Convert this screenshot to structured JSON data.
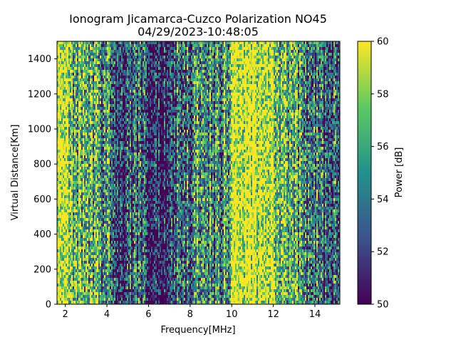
{
  "chart_data": {
    "type": "heatmap",
    "title": "Ionogram Jicamarca-Cuzco Polarization NO45",
    "subtitle": "04/29/2023-10:48:05",
    "xlabel": "Frequency[MHz]",
    "ylabel": "Virtual Distance[Km]",
    "colorbar_label": "Power [dB]",
    "colormap": "viridis",
    "colormap_stops": [
      "#440154",
      "#3b528b",
      "#21918c",
      "#5ec962",
      "#fde725"
    ],
    "xlim": [
      1.6,
      15.2
    ],
    "ylim": [
      0,
      1500
    ],
    "clim": [
      50,
      60
    ],
    "x_ticks": [
      2,
      4,
      6,
      8,
      10,
      12,
      14
    ],
    "y_ticks": [
      0,
      200,
      400,
      600,
      800,
      1000,
      1200,
      1400
    ],
    "colorbar_ticks": [
      50,
      52,
      54,
      56,
      58,
      60
    ],
    "bands": [
      {
        "x": [
          1.6,
          2.2
        ],
        "level": 58.5
      },
      {
        "x": [
          2.2,
          3.0
        ],
        "level": 56.5
      },
      {
        "x": [
          3.0,
          3.6
        ],
        "level": 55.5
      },
      {
        "x": [
          3.6,
          4.4
        ],
        "level": 54.5
      },
      {
        "x": [
          4.4,
          5.2
        ],
        "level": 52.5
      },
      {
        "x": [
          5.2,
          6.0
        ],
        "level": 53.5
      },
      {
        "x": [
          6.0,
          7.2
        ],
        "level": 51.5
      },
      {
        "x": [
          7.2,
          8.2
        ],
        "level": 53.5
      },
      {
        "x": [
          8.2,
          9.0
        ],
        "level": 55.5
      },
      {
        "x": [
          9.0,
          9.6
        ],
        "level": 54.5
      },
      {
        "x": [
          9.6,
          10.0
        ],
        "level": 57.0
      },
      {
        "x": [
          10.0,
          10.6
        ],
        "level": 59.5
      },
      {
        "x": [
          10.6,
          12.1
        ],
        "level": 60.0
      },
      {
        "x": [
          12.1,
          12.8
        ],
        "level": 57.0
      },
      {
        "x": [
          12.8,
          13.6
        ],
        "level": 56.0
      },
      {
        "x": [
          13.6,
          14.3
        ],
        "level": 54.0
      },
      {
        "x": [
          14.3,
          15.2
        ],
        "level": 53.0
      }
    ]
  }
}
